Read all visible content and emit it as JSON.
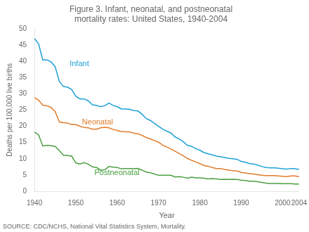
{
  "chart_data": {
    "type": "line",
    "title": "Figure 3. Infant, neonatal, and postneonatal\nmortality rates: United States, 1940-2004",
    "xlabel": "Year",
    "ylabel": "Deaths per 100,000 live births",
    "source": "SOURCE: CDC/NCHS, National Vital Statistics System, Mortality.",
    "xlim": [
      1940,
      2004
    ],
    "ylim": [
      0,
      50
    ],
    "xticks": [
      1940,
      1950,
      1960,
      1970,
      1980,
      1990,
      2000,
      2004
    ],
    "yticks": [
      0,
      5,
      10,
      15,
      20,
      25,
      30,
      35,
      40,
      45,
      50
    ],
    "grid": false,
    "x": [
      1940,
      1941,
      1942,
      1943,
      1944,
      1945,
      1946,
      1947,
      1948,
      1949,
      1950,
      1951,
      1952,
      1953,
      1954,
      1955,
      1956,
      1957,
      1958,
      1959,
      1960,
      1961,
      1962,
      1963,
      1964,
      1965,
      1966,
      1967,
      1968,
      1969,
      1970,
      1971,
      1972,
      1973,
      1974,
      1975,
      1976,
      1977,
      1978,
      1979,
      1980,
      1981,
      1982,
      1983,
      1984,
      1985,
      1986,
      1987,
      1988,
      1989,
      1990,
      1991,
      1992,
      1993,
      1994,
      1995,
      1996,
      1997,
      1998,
      1999,
      2000,
      2001,
      2002,
      2003,
      2004
    ],
    "series": [
      {
        "name": "Infant",
        "color": "#1fa0d4",
        "values": [
          47.0,
          45.3,
          40.4,
          40.4,
          39.8,
          38.3,
          33.8,
          32.2,
          32.0,
          31.3,
          29.2,
          28.4,
          28.4,
          27.8,
          26.6,
          26.4,
          26.0,
          26.3,
          27.1,
          26.4,
          26.0,
          25.3,
          25.3,
          25.2,
          24.8,
          24.7,
          23.7,
          22.4,
          21.8,
          20.9,
          20.0,
          19.1,
          18.5,
          17.9,
          16.7,
          16.1,
          15.2,
          14.1,
          13.8,
          13.1,
          12.6,
          11.9,
          11.5,
          11.2,
          10.8,
          10.6,
          10.4,
          10.1,
          10.0,
          9.8,
          9.2,
          8.9,
          8.5,
          8.4,
          8.0,
          7.6,
          7.3,
          7.2,
          7.2,
          7.1,
          6.9,
          6.8,
          7.0,
          6.9,
          6.7
        ]
      },
      {
        "name": "Neonatal",
        "color": "#e07b2a",
        "values": [
          28.8,
          28.0,
          26.5,
          26.3,
          25.8,
          24.5,
          21.3,
          21.1,
          21.0,
          20.5,
          20.5,
          20.0,
          19.6,
          19.5,
          19.1,
          19.1,
          19.5,
          19.7,
          19.5,
          19.0,
          18.7,
          18.4,
          18.3,
          18.2,
          17.9,
          17.7,
          17.2,
          16.5,
          16.1,
          15.6,
          15.1,
          14.2,
          13.6,
          13.0,
          12.3,
          11.6,
          10.9,
          10.1,
          9.5,
          9.0,
          8.5,
          7.9,
          7.7,
          7.3,
          7.0,
          7.0,
          6.7,
          6.5,
          6.3,
          6.2,
          5.8,
          5.6,
          5.4,
          5.3,
          5.1,
          4.9,
          4.8,
          4.8,
          4.8,
          4.7,
          4.6,
          4.5,
          4.7,
          4.7,
          4.5
        ]
      },
      {
        "name": "Postneonatal",
        "color": "#4aa040",
        "values": [
          18.2,
          17.3,
          13.9,
          14.1,
          14.0,
          13.8,
          12.5,
          11.1,
          11.0,
          10.8,
          8.7,
          8.4,
          8.8,
          8.3,
          7.5,
          7.3,
          6.5,
          6.6,
          7.6,
          7.4,
          7.3,
          6.9,
          7.0,
          7.0,
          6.9,
          7.0,
          6.5,
          5.9,
          5.7,
          5.3,
          4.9,
          4.9,
          4.9,
          4.9,
          4.4,
          4.5,
          4.3,
          4.0,
          4.3,
          4.1,
          4.1,
          4.0,
          3.8,
          3.9,
          3.8,
          3.6,
          3.7,
          3.6,
          3.7,
          3.6,
          3.4,
          3.3,
          3.1,
          3.1,
          2.9,
          2.7,
          2.5,
          2.4,
          2.4,
          2.4,
          2.3,
          2.3,
          2.3,
          2.2,
          2.2
        ]
      }
    ],
    "annotations": [
      {
        "text": "Infant",
        "x": 1948.5,
        "y": 38.5,
        "color": "#1fa0d4"
      },
      {
        "text": "Neonatal",
        "x": 1951.5,
        "y": 20.5,
        "color": "#e07b2a"
      },
      {
        "text": "Postneonatal",
        "x": 1954.5,
        "y": 5.0,
        "color": "#4aa040"
      }
    ]
  }
}
